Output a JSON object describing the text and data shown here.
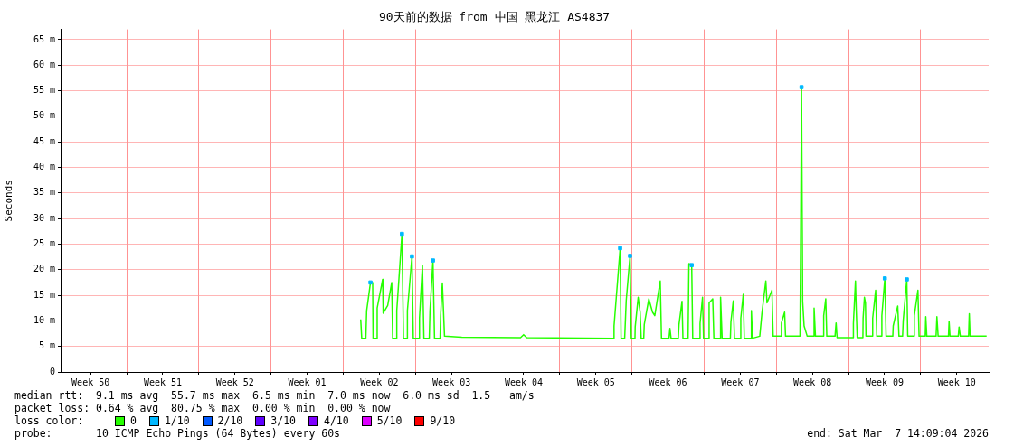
{
  "chart_data": {
    "type": "line",
    "title": "90天前的数据 from 中国 黑龙江 AS4837",
    "ylabel": "Seconds",
    "legend_title": "loss color:",
    "legend": "bottom",
    "grid": true,
    "xlim": [
      "2025-12-07T14:09",
      "2026-03-07T14:09"
    ],
    "ylim": [
      0,
      67
    ],
    "xticks": [
      {
        "value": "2025-12-10T12:00",
        "label": "Week 50"
      },
      {
        "value": "2025-12-14T00:00",
        "label": null
      },
      {
        "value": "2025-12-17T12:00",
        "label": "Week 51"
      },
      {
        "value": "2025-12-21T00:00",
        "label": null
      },
      {
        "value": "2025-12-24T12:00",
        "label": "Week 52"
      },
      {
        "value": "2025-12-28T00:00",
        "label": null
      },
      {
        "value": "2025-12-31T12:00",
        "label": "Week 01"
      },
      {
        "value": "2026-01-04T00:00",
        "label": null
      },
      {
        "value": "2026-01-07T12:00",
        "label": "Week 02"
      },
      {
        "value": "2026-01-11T00:00",
        "label": null
      },
      {
        "value": "2026-01-14T12:00",
        "label": "Week 03"
      },
      {
        "value": "2026-01-18T00:00",
        "label": null
      },
      {
        "value": "2026-01-21T12:00",
        "label": "Week 04"
      },
      {
        "value": "2026-01-25T00:00",
        "label": null
      },
      {
        "value": "2026-01-28T12:00",
        "label": "Week 05"
      },
      {
        "value": "2026-02-01T00:00",
        "label": null
      },
      {
        "value": "2026-02-04T12:00",
        "label": "Week 06"
      },
      {
        "value": "2026-02-08T00:00",
        "label": null
      },
      {
        "value": "2026-02-11T12:00",
        "label": "Week 07"
      },
      {
        "value": "2026-02-15T00:00",
        "label": null
      },
      {
        "value": "2026-02-18T12:00",
        "label": "Week 08"
      },
      {
        "value": "2026-02-22T00:00",
        "label": null
      },
      {
        "value": "2026-02-25T12:00",
        "label": "Week 09"
      },
      {
        "value": "2026-03-01T00:00",
        "label": null
      },
      {
        "value": "2026-03-04T12:00",
        "label": "Week 10"
      }
    ],
    "yticks": [
      0,
      {
        "value": 5,
        "label": "5 m"
      },
      {
        "value": 10,
        "label": "10 m"
      },
      {
        "value": 15,
        "label": "15 m"
      },
      {
        "value": 20,
        "label": "20 m"
      },
      {
        "value": 25,
        "label": "25 m"
      },
      {
        "value": 30,
        "label": "30 m"
      },
      {
        "value": 35,
        "label": "35 m"
      },
      {
        "value": 40,
        "label": "40 m"
      },
      {
        "value": 45,
        "label": "45 m"
      },
      {
        "value": 50,
        "label": "50 m"
      },
      {
        "value": 55,
        "label": "55 m"
      },
      {
        "value": 60,
        "label": "60 m"
      },
      {
        "value": 65,
        "label": "65 m"
      }
    ],
    "series": [
      {
        "name": "0",
        "color": "#26ff00",
        "x": [
          "2026-01-05T16:34",
          "2026-01-05T18:58",
          "2026-01-06T04:34",
          "2026-01-06T06:29",
          "2026-01-06T15:22",
          "2026-01-06T20:24",
          "2026-01-06T21:22",
          "2026-01-07T05:31",
          "2026-01-07T06:58",
          "2026-01-07T19:41",
          "2026-01-07T20:53",
          "2026-01-08T07:26",
          "2026-01-08T16:48",
          "2026-01-08T18:58",
          "2026-01-09T03:22",
          "2026-01-09T04:34",
          "2026-01-09T16:34",
          "2026-01-09T20:10",
          "2026-01-10T04:34",
          "2026-01-10T05:17",
          "2026-01-10T15:50",
          "2026-01-10T18:58",
          "2026-01-11T08:10",
          "2026-01-11T09:22",
          "2026-01-11T16:19",
          "2026-01-11T19:41",
          "2026-01-12T08:10",
          "2026-01-12T09:50",
          "2026-01-12T16:48",
          "2026-01-12T20:24",
          "2026-01-13T09:22",
          "2026-01-13T10:34",
          "2026-01-13T14:38",
          "2026-01-13T19:41",
          "2026-01-15T11:46",
          "2026-01-21T04:34",
          "2026-01-21T11:46",
          "2026-01-21T18:58",
          "2026-01-30T04:34",
          "2026-01-30T06:14",
          "2026-01-30T20:24",
          "2026-01-30T22:34",
          "2026-01-31T06:58",
          "2026-01-31T10:34",
          "2026-01-31T19:26",
          "2026-01-31T22:19",
          "2026-02-01T06:58",
          "2026-02-01T07:26",
          "2026-02-01T14:24",
          "2026-02-01T18:58",
          "2026-02-01T21:22",
          "2026-02-02T03:22",
          "2026-02-02T04:34",
          "2026-02-02T15:07",
          "2026-02-02T23:46",
          "2026-02-03T05:02",
          "2026-02-03T17:46",
          "2026-02-03T20:38",
          "2026-02-04T14:10",
          "2026-02-04T16:19",
          "2026-02-04T18:58",
          "2026-02-05T11:46",
          "2026-02-05T13:26",
          "2026-02-05T20:24",
          "2026-02-05T22:34",
          "2026-02-06T10:34",
          "2026-02-06T12:29",
          "2026-02-06T18:58",
          "2026-02-06T21:22",
          "2026-02-07T12:58",
          "2026-02-07T14:24",
          "2026-02-07T20:10",
          "2026-02-07T22:34",
          "2026-02-08T10:34",
          "2026-02-08T11:31",
          "2026-02-08T19:55",
          "2026-02-08T22:34",
          "2026-02-09T12:58",
          "2026-02-09T14:10",
          "2026-02-09T17:46",
          "2026-02-10T12:58",
          "2026-02-10T14:10",
          "2026-02-10T19:41",
          "2026-02-10T22:34",
          "2026-02-11T11:46",
          "2026-02-11T13:12",
          "2026-02-11T18:58",
          "2026-02-11T21:22",
          "2026-02-12T12:58",
          "2026-02-12T13:55",
          "2026-02-12T16:34",
          "2026-02-13T09:22",
          "2026-02-13T14:24",
          "2026-02-13T23:31",
          "2026-02-14T02:10",
          "2026-02-14T13:41",
          "2026-02-14T16:34",
          "2026-02-15T10:34",
          "2026-02-15T11:46",
          "2026-02-15T19:12",
          "2026-02-15T21:22",
          "2026-02-17T06:58",
          "2026-02-17T08:24",
          "2026-02-17T10:34",
          "2026-02-17T13:12",
          "2026-02-17T16:34",
          "2026-02-17T23:46",
          "2026-02-18T14:10",
          "2026-02-18T15:50",
          "2026-02-18T18:58",
          "2026-02-19T12:58",
          "2026-02-19T14:10",
          "2026-02-19T18:58",
          "2026-02-19T21:22",
          "2026-02-20T16:34",
          "2026-02-20T18:58",
          "2026-02-20T21:22",
          "2026-02-22T10:34",
          "2026-02-22T11:17",
          "2026-02-22T16:05",
          "2026-02-22T17:46",
          "2026-02-22T20:10",
          "2026-02-23T09:22",
          "2026-02-23T09:50",
          "2026-02-23T12:58",
          "2026-02-23T15:22",
          "2026-02-23T16:34",
          "2026-02-24T06:58",
          "2026-02-24T08:10",
          "2026-02-24T15:07",
          "2026-02-24T17:46",
          "2026-02-25T04:34",
          "2026-02-25T05:31",
          "2026-02-25T12:29",
          "2026-02-25T15:22",
          "2026-02-26T06:58",
          "2026-02-26T07:55",
          "2026-02-26T18:29",
          "2026-02-26T21:22",
          "2026-02-27T05:46",
          "2026-02-27T07:12",
          "2026-02-27T15:36",
          "2026-02-27T17:46",
          "2026-02-28T08:10",
          "2026-02-28T09:07",
          "2026-02-28T17:31",
          "2026-02-28T20:10",
          "2026-03-01T10:34",
          "2026-03-01T11:46",
          "2026-03-01T14:10",
          "2026-03-02T11:46",
          "2026-03-02T13:41",
          "2026-03-02T16:34",
          "2026-03-03T16:34",
          "2026-03-03T18:00",
          "2026-03-03T20:10",
          "2026-03-04T15:22",
          "2026-03-04T17:17",
          "2026-03-04T20:10",
          "2026-03-05T15:22",
          "2026-03-05T17:02",
          "2026-03-05T18:58",
          "2026-03-07T09:22"
        ],
        "values": [
          10.3,
          6.6,
          6.6,
          12,
          17.5,
          17.5,
          6.6,
          6.6,
          12.5,
          18.1,
          11.5,
          13,
          17.5,
          6.6,
          6.6,
          12,
          27,
          6.6,
          6.6,
          12,
          22.6,
          6.6,
          6.6,
          10.5,
          20.9,
          6.6,
          6.6,
          12,
          21.8,
          6.6,
          6.6,
          11,
          17.4,
          7,
          6.8,
          6.7,
          7.3,
          6.7,
          6.6,
          9,
          24.2,
          6.6,
          6.6,
          14,
          22.7,
          6.6,
          6.6,
          8.8,
          14.6,
          11.7,
          6.6,
          6.6,
          9.3,
          14.3,
          11.7,
          11,
          17.8,
          6.6,
          6.6,
          8.5,
          6.6,
          6.6,
          9.3,
          13.8,
          6.6,
          6.6,
          21.2,
          20.9,
          6.6,
          6.6,
          9.5,
          14.6,
          6.6,
          6.6,
          13.5,
          14.3,
          6.6,
          6.6,
          14.6,
          6.6,
          6.6,
          9.8,
          13.9,
          6.6,
          6.6,
          10.5,
          15.2,
          6.6,
          6.6,
          12,
          6.6,
          7,
          11.5,
          17.8,
          13.5,
          16,
          7,
          7,
          9.6,
          11.7,
          7,
          7,
          24,
          55.7,
          13.8,
          9,
          7,
          7,
          12.5,
          7,
          7,
          11,
          14.3,
          7,
          7,
          9.6,
          6.7,
          6.7,
          9.5,
          17.8,
          12.4,
          6.7,
          6.7,
          10.5,
          14.6,
          13.5,
          7,
          7,
          10.5,
          16,
          7,
          7,
          11,
          18.3,
          7,
          7,
          9,
          12.9,
          7,
          7,
          10,
          18.1,
          7,
          7,
          11,
          16,
          7,
          7,
          10.8,
          7,
          7,
          10.8,
          7,
          7,
          9.9,
          7,
          7,
          8.8,
          7,
          7,
          11.4,
          7,
          7
        ]
      },
      {
        "name": "1/10",
        "color": "#00b8ff",
        "type": "scatter",
        "marker": "square",
        "x": [
          "2026-01-06T15:22",
          "2026-01-09T16:34",
          "2026-01-10T15:50",
          "2026-01-12T16:48",
          "2026-01-30T20:24",
          "2026-01-31T19:26",
          "2026-02-06T18:58",
          "2026-02-17T10:34",
          "2026-02-25T12:29",
          "2026-02-27T15:36"
        ],
        "values": [
          17.5,
          27,
          22.6,
          21.8,
          24.2,
          22.7,
          20.9,
          55.7,
          18.3,
          18.1
        ]
      },
      {
        "name": "2/10",
        "color": "#0059ff",
        "type": "scatter"
      },
      {
        "name": "3/10",
        "color": "#5e00ff",
        "type": "scatter"
      },
      {
        "name": "4/10",
        "color": "#7e00ff",
        "type": "scatter"
      },
      {
        "name": "5/10",
        "color": "#dd00ff",
        "type": "scatter"
      },
      {
        "name": "9/10",
        "color": "#ff0000",
        "type": "scatter"
      }
    ],
    "annotations": [
      "median rtt:  9.1 ms avg  55.7 ms max  6.5 ms min  7.0 ms now  6.0 ms sd  1.5   am/s",
      "packet loss: 0.64 % avg  80.75 % max  0.00 % min  0.00 % now",
      "probe:       10 ICMP Echo Pings (64 Bytes) every 60s",
      "end: Sat Mar  7 14:09:04 2026"
    ]
  }
}
